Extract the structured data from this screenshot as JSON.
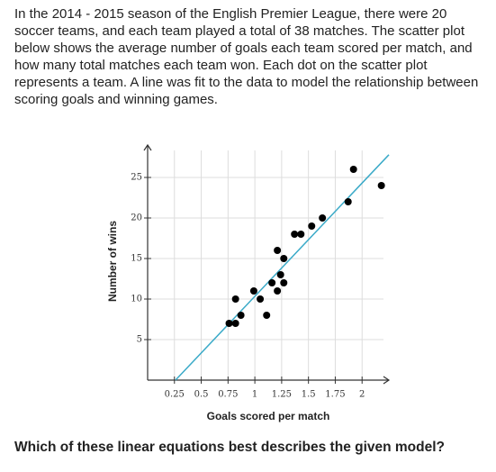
{
  "intro": "In the 2014 - 2015 season of the English Premier League, there were 20 soccer teams, and each team played a total of 38 matches. The scatter plot below shows the average number of goals each team scored per match, and how many total matches each team won. Each dot on the scatter plot represents a team. A line was fit to the data to model the relationship between scoring goals and winning games.",
  "chart_data": {
    "type": "scatter",
    "x_label": "Goals scored per match",
    "y_label": "Number of wins",
    "xlim": [
      0,
      2.25
    ],
    "ylim": [
      0,
      29
    ],
    "xticks": [
      0.25,
      0.5,
      0.75,
      1,
      1.25,
      1.5,
      1.75,
      2
    ],
    "yticks": [
      5,
      10,
      15,
      20,
      25
    ],
    "grid": true,
    "series": [
      {
        "color": "#000000",
        "x": [
          1.92,
          2.18,
          1.87,
          1.63,
          1.53,
          1.37,
          1.43,
          1.21,
          1.27,
          1.24,
          1.16,
          1.27,
          0.99,
          1.21,
          0.82,
          1.05,
          0.87,
          1.11,
          0.76,
          0.82
        ],
        "values": [
          26,
          24,
          22,
          20,
          19,
          18,
          18,
          16,
          15,
          13,
          12,
          12,
          11,
          11,
          10,
          10,
          8,
          8,
          7,
          7
        ]
      }
    ],
    "fit_line": {
      "color": "#3aaac8",
      "x": [
        0.26,
        2.25
      ],
      "values": [
        0,
        27.8
      ]
    }
  },
  "question": "Which of these linear equations best describes the given model?"
}
